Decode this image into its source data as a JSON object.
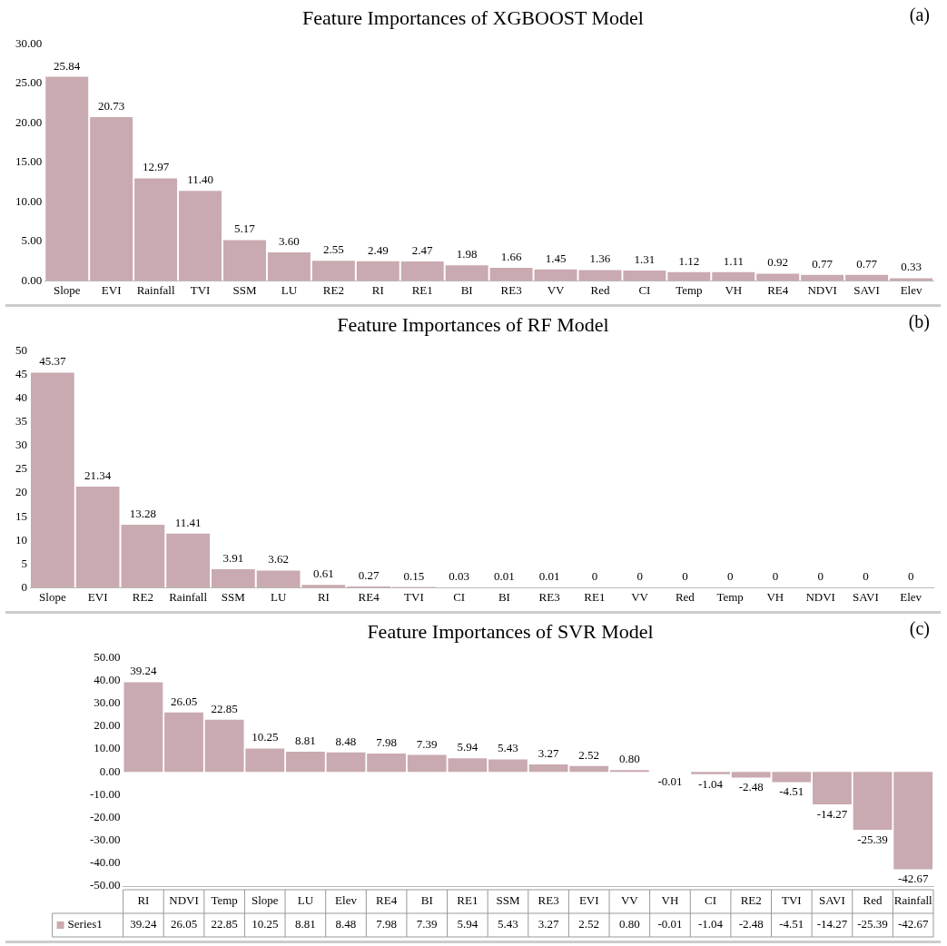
{
  "chart_data": [
    {
      "type": "bar",
      "title": "Feature Importances of XGBOOST Model",
      "annotations": [
        "(a)"
      ],
      "categories": [
        "Slope",
        "EVI",
        "Rainfall",
        "TVI",
        "SSM",
        "LU",
        "RE2",
        "RI",
        "RE1",
        "BI",
        "RE3",
        "VV",
        "Red",
        "CI",
        "Temp",
        "VH",
        "RE4",
        "NDVI",
        "SAVI",
        "Elev"
      ],
      "values": [
        25.84,
        20.73,
        12.97,
        11.4,
        5.17,
        3.6,
        2.55,
        2.49,
        2.47,
        1.98,
        1.66,
        1.45,
        1.36,
        1.31,
        1.12,
        1.11,
        0.92,
        0.77,
        0.77,
        0.33
      ],
      "value_labels": [
        "25.84",
        "20.73",
        "12.97",
        "11.40",
        "5.17",
        "3.60",
        "2.55",
        "2.49",
        "2.47",
        "1.98",
        "1.66",
        "1.45",
        "1.36",
        "1.31",
        "1.12",
        "1.11",
        "0.92",
        "0.77",
        "0.77",
        "0.33"
      ],
      "color": "#c9aab0",
      "ylim": [
        0,
        30
      ],
      "yticks": [
        {
          "value": 0,
          "label": "0.00"
        },
        {
          "value": 5,
          "label": "5.00"
        },
        {
          "value": 10,
          "label": "10.00"
        },
        {
          "value": 15,
          "label": "15.00"
        },
        {
          "value": 20,
          "label": "20.00"
        },
        {
          "value": 25,
          "label": "25.00"
        },
        {
          "value": 30,
          "label": "30.00"
        }
      ]
    },
    {
      "type": "bar",
      "title": "Feature Importances of RF Model",
      "annotations": [
        "(b)"
      ],
      "categories": [
        "Slope",
        "EVI",
        "RE2",
        "Rainfall",
        "SSM",
        "LU",
        "RI",
        "RE4",
        "TVI",
        "CI",
        "BI",
        "RE3",
        "RE1",
        "VV",
        "Red",
        "Temp",
        "VH",
        "NDVI",
        "SAVI",
        "Elev"
      ],
      "values": [
        45.37,
        21.34,
        13.28,
        11.41,
        3.91,
        3.62,
        0.61,
        0.27,
        0.15,
        0.03,
        0.01,
        0.01,
        0,
        0,
        0,
        0,
        0,
        0,
        0,
        0
      ],
      "data_labels": true,
      "color": "#c9aab0",
      "ylim": [
        0,
        50
      ],
      "yticks": [
        0,
        5,
        10,
        15,
        20,
        25,
        30,
        35,
        40,
        45,
        50
      ]
    },
    {
      "type": "bar",
      "title": "Feature Importances of SVR Model",
      "annotations": [
        "(c)"
      ],
      "categories": [
        "RI",
        "NDVI",
        "Temp",
        "Slope",
        "LU",
        "Elev",
        "RE4",
        "BI",
        "RE1",
        "SSM",
        "RE3",
        "EVI",
        "VV",
        "VH",
        "CI",
        "RE2",
        "TVI",
        "SAVI",
        "Red",
        "Rainfall"
      ],
      "series": [
        {
          "name": "Series1",
          "color": "#c9aab0",
          "values": [
            39.24,
            26.05,
            22.85,
            10.25,
            8.81,
            8.48,
            7.98,
            7.39,
            5.94,
            5.43,
            3.27,
            2.52,
            0.8,
            -0.01,
            -1.04,
            -2.48,
            -4.51,
            -14.27,
            -25.39,
            -42.67
          ],
          "value_labels": [
            "39.24",
            "26.05",
            "22.85",
            "10.25",
            "8.81",
            "8.48",
            "7.98",
            "7.39",
            "5.94",
            "5.43",
            "3.27",
            "2.52",
            "0.80",
            "-0.01",
            "-1.04",
            "-2.48",
            "-4.51",
            "-14.27",
            "-25.39",
            "-42.67"
          ]
        }
      ],
      "ylim": [
        -50,
        50
      ],
      "yticks": [
        {
          "value": -50,
          "label": "-50.00"
        },
        {
          "value": -40,
          "label": "-40.00"
        },
        {
          "value": -30,
          "label": "-30.00"
        },
        {
          "value": -20,
          "label": "-20.00"
        },
        {
          "value": -10,
          "label": "-10.00"
        },
        {
          "value": 0,
          "label": "0.00"
        },
        {
          "value": 10,
          "label": "10.00"
        },
        {
          "value": 20,
          "label": "20.00"
        },
        {
          "value": 30,
          "label": "30.00"
        },
        {
          "value": 40,
          "label": "40.00"
        },
        {
          "value": 50,
          "label": "50.00"
        }
      ]
    }
  ]
}
